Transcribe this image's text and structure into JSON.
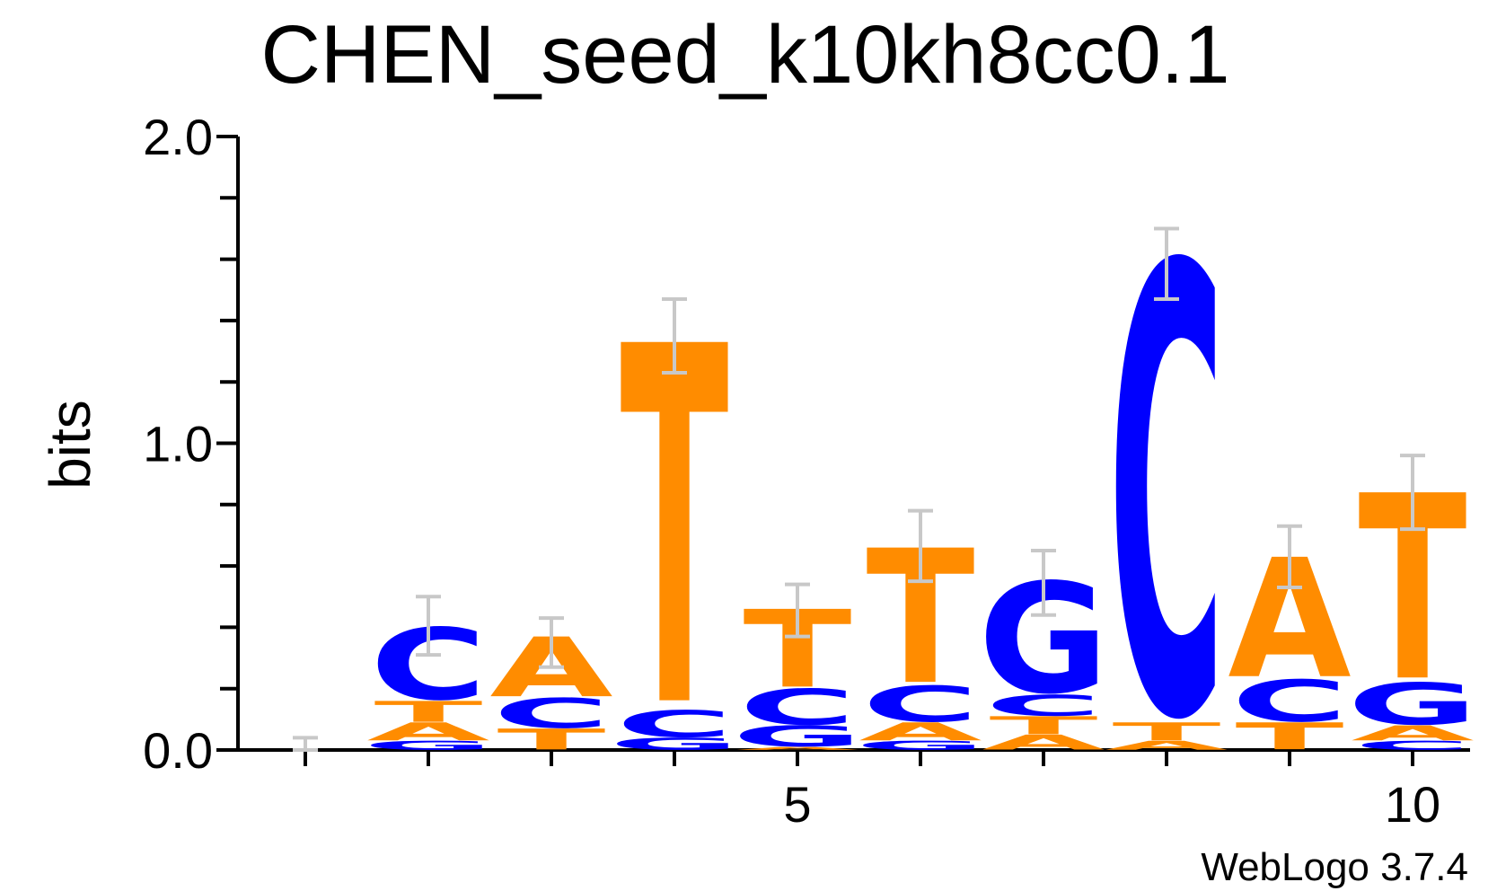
{
  "chart_data": {
    "type": "sequence_logo",
    "title": "CHEN_seed_k10kh8cc0.1",
    "ylabel": "bits",
    "ylim": [
      0,
      2
    ],
    "yticks": [
      "0.0",
      "1.0",
      "2.0"
    ],
    "xticks": [
      {
        "position": 5,
        "label": "5"
      },
      {
        "position": 10,
        "label": "10"
      }
    ],
    "colors": {
      "A": "#ff8c00",
      "T": "#ff8c00",
      "C": "#0000ff",
      "G": "#0000ff",
      "error_bar": "#c8c8c8"
    },
    "positions": [
      {
        "pos": 1,
        "stack": [],
        "error": [
          0.0,
          0.04
        ]
      },
      {
        "pos": 2,
        "stack": [
          {
            "letter": "G",
            "bits": 0.03
          },
          {
            "letter": "A",
            "bits": 0.06
          },
          {
            "letter": "T",
            "bits": 0.07
          },
          {
            "letter": "C",
            "bits": 0.24
          }
        ],
        "error": [
          0.31,
          0.5
        ]
      },
      {
        "pos": 3,
        "stack": [
          {
            "letter": "T",
            "bits": 0.07
          },
          {
            "letter": "C",
            "bits": 0.1
          },
          {
            "letter": "A",
            "bits": 0.2
          }
        ],
        "error": [
          0.27,
          0.43
        ]
      },
      {
        "pos": 4,
        "stack": [
          {
            "letter": "G",
            "bits": 0.04
          },
          {
            "letter": "C",
            "bits": 0.09
          },
          {
            "letter": "T",
            "bits": 1.2
          }
        ],
        "error": [
          1.23,
          1.47
        ]
      },
      {
        "pos": 5,
        "stack": [
          {
            "letter": "A",
            "bits": 0.01
          },
          {
            "letter": "G",
            "bits": 0.07
          },
          {
            "letter": "C",
            "bits": 0.12
          },
          {
            "letter": "T",
            "bits": 0.26
          }
        ],
        "error": [
          0.37,
          0.54
        ]
      },
      {
        "pos": 6,
        "stack": [
          {
            "letter": "G",
            "bits": 0.03
          },
          {
            "letter": "A",
            "bits": 0.06
          },
          {
            "letter": "C",
            "bits": 0.12
          },
          {
            "letter": "T",
            "bits": 0.45
          }
        ],
        "error": [
          0.55,
          0.78
        ]
      },
      {
        "pos": 7,
        "stack": [
          {
            "letter": "A",
            "bits": 0.05
          },
          {
            "letter": "T",
            "bits": 0.06
          },
          {
            "letter": "C",
            "bits": 0.07
          },
          {
            "letter": "G",
            "bits": 0.37
          }
        ],
        "error": [
          0.44,
          0.65
        ]
      },
      {
        "pos": 8,
        "stack": [
          {
            "letter": "A",
            "bits": 0.03
          },
          {
            "letter": "T",
            "bits": 0.06
          },
          {
            "letter": "C",
            "bits": 1.5
          }
        ],
        "error": [
          1.47,
          1.7
        ]
      },
      {
        "pos": 9,
        "stack": [
          {
            "letter": "T",
            "bits": 0.09
          },
          {
            "letter": "C",
            "bits": 0.14
          },
          {
            "letter": "A",
            "bits": 0.4
          }
        ],
        "error": [
          0.53,
          0.73
        ]
      },
      {
        "pos": 10,
        "stack": [
          {
            "letter": "C",
            "bits": 0.03
          },
          {
            "letter": "A",
            "bits": 0.05
          },
          {
            "letter": "G",
            "bits": 0.14
          },
          {
            "letter": "T",
            "bits": 0.62
          }
        ],
        "error": [
          0.72,
          0.96
        ]
      }
    ]
  },
  "footer": "WebLogo 3.7.4"
}
